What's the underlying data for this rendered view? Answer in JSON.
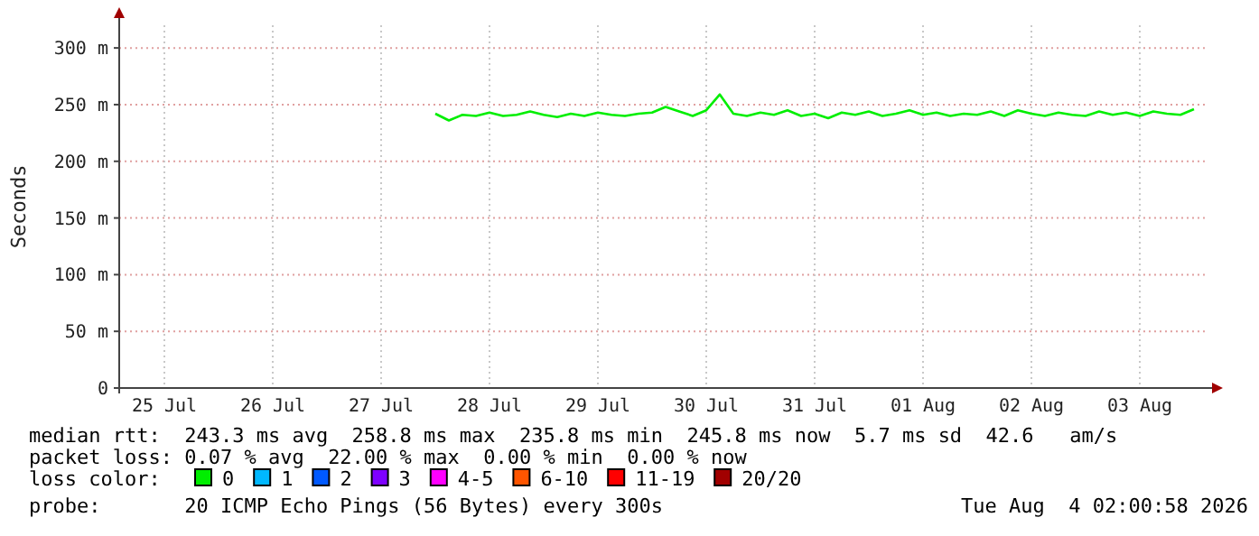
{
  "chart_data": {
    "type": "line",
    "ylabel": "Seconds",
    "legend_title": "loss color:",
    "legend": "bottom",
    "grid": true,
    "marker": "none",
    "line_style": "solid",
    "xlim": [
      "2026-07-25T02:00",
      "2026-08-04T02:00"
    ],
    "xticks": [
      {
        "value": "2026-07-25T12:00",
        "label": "25 Jul"
      },
      {
        "value": "2026-07-26T12:00",
        "label": "26 Jul"
      },
      {
        "value": "2026-07-27T12:00",
        "label": "27 Jul"
      },
      {
        "value": "2026-07-28T12:00",
        "label": "28 Jul"
      },
      {
        "value": "2026-07-29T12:00",
        "label": "29 Jul"
      },
      {
        "value": "2026-07-30T12:00",
        "label": "30 Jul"
      },
      {
        "value": "2026-07-31T12:00",
        "label": "31 Jul"
      },
      {
        "value": "2026-08-01T12:00",
        "label": "01 Aug"
      },
      {
        "value": "2026-08-02T12:00",
        "label": "02 Aug"
      },
      {
        "value": "2026-08-03T12:00",
        "label": "03 Aug"
      }
    ],
    "ylim": [
      0,
      320
    ],
    "yticks": [
      0,
      {
        "value": 50,
        "label": "50 m"
      },
      {
        "value": 100,
        "label": "100 m"
      },
      {
        "value": 150,
        "label": "150 m"
      },
      {
        "value": 200,
        "label": "200 m"
      },
      {
        "value": 250,
        "label": "250 m"
      },
      {
        "value": 300,
        "label": "300 m"
      }
    ],
    "series": [
      {
        "name": "0",
        "color": "#00ee00",
        "x": [
          "2026-07-28T00:00",
          "2026-07-28T03:00",
          "2026-07-28T06:00",
          "2026-07-28T09:00",
          "2026-07-28T12:00",
          "2026-07-28T15:00",
          "2026-07-28T18:00",
          "2026-07-28T21:00",
          "2026-07-29T00:00",
          "2026-07-29T03:00",
          "2026-07-29T06:00",
          "2026-07-29T09:00",
          "2026-07-29T12:00",
          "2026-07-29T15:00",
          "2026-07-29T18:00",
          "2026-07-29T21:00",
          "2026-07-30T00:00",
          "2026-07-30T03:00",
          "2026-07-30T06:00",
          "2026-07-30T09:00",
          "2026-07-30T12:00",
          "2026-07-30T15:00",
          "2026-07-30T18:00",
          "2026-07-30T21:00",
          "2026-07-31T00:00",
          "2026-07-31T03:00",
          "2026-07-31T06:00",
          "2026-07-31T09:00",
          "2026-07-31T12:00",
          "2026-07-31T15:00",
          "2026-07-31T18:00",
          "2026-07-31T21:00",
          "2026-08-01T00:00",
          "2026-08-01T03:00",
          "2026-08-01T06:00",
          "2026-08-01T09:00",
          "2026-08-01T12:00",
          "2026-08-01T15:00",
          "2026-08-01T18:00",
          "2026-08-01T21:00",
          "2026-08-02T00:00",
          "2026-08-02T03:00",
          "2026-08-02T06:00",
          "2026-08-02T09:00",
          "2026-08-02T12:00",
          "2026-08-02T15:00",
          "2026-08-02T18:00",
          "2026-08-02T21:00",
          "2026-08-03T00:00",
          "2026-08-03T03:00",
          "2026-08-03T06:00",
          "2026-08-03T09:00",
          "2026-08-03T12:00",
          "2026-08-03T15:00",
          "2026-08-03T18:00",
          "2026-08-03T21:00",
          "2026-08-04T00:00"
        ],
        "values": [
          242,
          236,
          241,
          240,
          243,
          240,
          241,
          244,
          241,
          239,
          242,
          240,
          243,
          241,
          240,
          242,
          243,
          248,
          244,
          240,
          245,
          259,
          242,
          240,
          243,
          241,
          245,
          240,
          242,
          238,
          243,
          241,
          244,
          240,
          242,
          245,
          241,
          243,
          240,
          242,
          241,
          244,
          240,
          245,
          242,
          240,
          243,
          241,
          240,
          244,
          241,
          243,
          240,
          244,
          242,
          241,
          246
        ]
      },
      {
        "name": "1",
        "color": "#00b8ff"
      },
      {
        "name": "2",
        "color": "#0059ff"
      },
      {
        "name": "3",
        "color": "#7e00ff"
      },
      {
        "name": "4-5",
        "color": "#ff00ff"
      },
      {
        "name": "6-10",
        "color": "#ff5500"
      },
      {
        "name": "11-19",
        "color": "#ff0000"
      },
      {
        "name": "20/20",
        "color": "#a10000"
      }
    ],
    "annotations": [
      "median rtt:  243.3 ms avg  258.8 ms max  235.8 ms min  245.8 ms now  5.7 ms sd  42.6   am/s",
      "packet loss: 0.07 % avg  22.00 % max  0.00 % min  0.00 % now",
      "probe:       20 ICMP Echo Pings (56 Bytes) every 300s",
      "Tue Aug  4 02:00:58 2026"
    ]
  }
}
